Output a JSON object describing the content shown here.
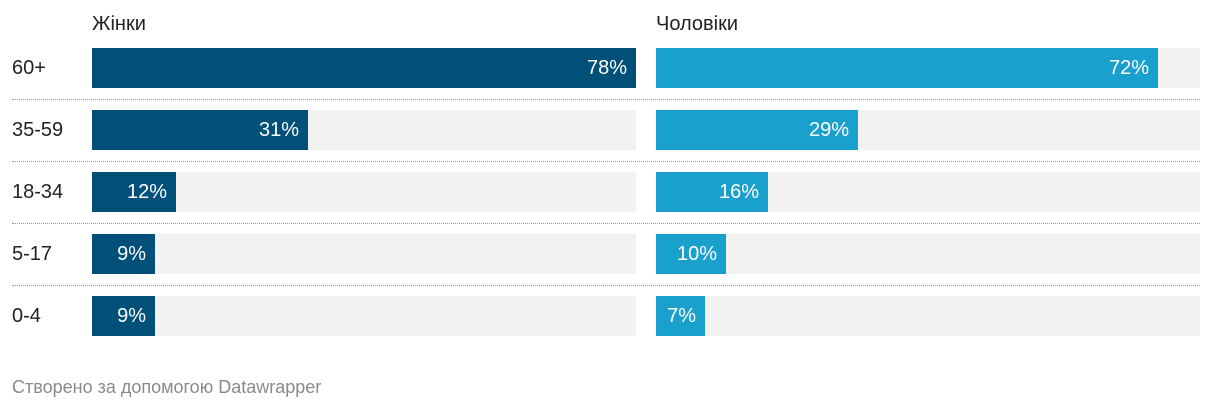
{
  "chart_data": {
    "type": "bar",
    "orientation": "horizontal",
    "categories": [
      "60+",
      "35-59",
      "18-34",
      "5-17",
      "0-4"
    ],
    "series": [
      {
        "name": "Жінки",
        "values": [
          78,
          31,
          12,
          9,
          9
        ],
        "labels": [
          "78%",
          "31%",
          "12%",
          "9%",
          "9%"
        ],
        "color": "#00507a"
      },
      {
        "name": "Чоловіки",
        "values": [
          72,
          29,
          16,
          10,
          7
        ],
        "labels": [
          "72%",
          "29%",
          "16%",
          "10%",
          "7%"
        ],
        "color": "#1aa0cd"
      }
    ],
    "xlim": [
      0,
      78
    ],
    "track_color": "#f2f2f2"
  },
  "footer": {
    "credit": "Створено за допомогою Datawrapper"
  }
}
